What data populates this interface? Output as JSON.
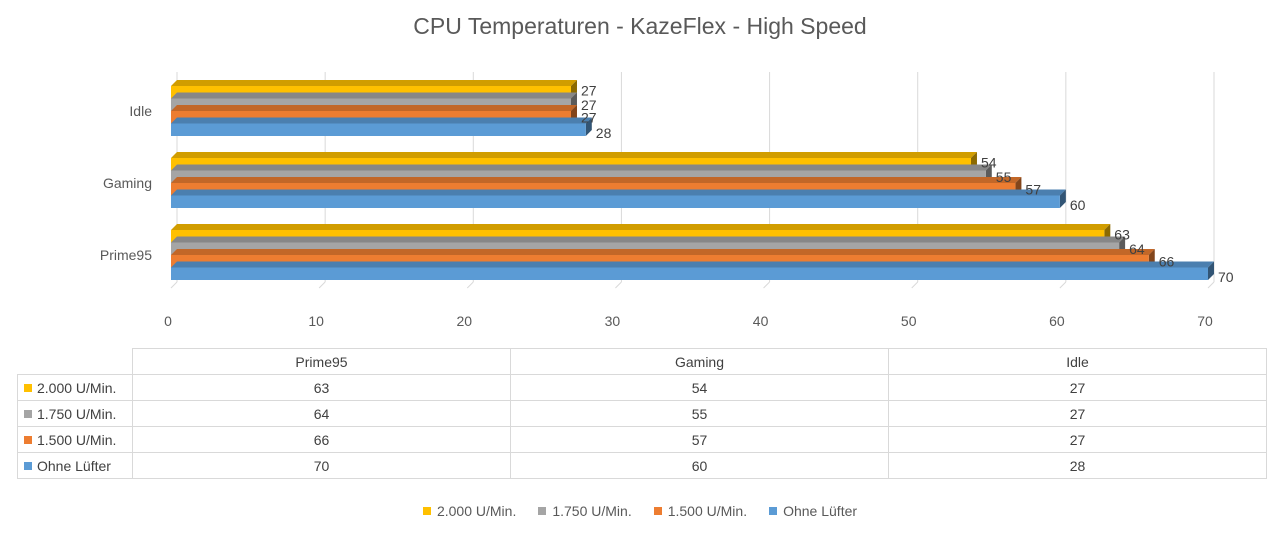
{
  "chart_data": {
    "type": "bar",
    "orientation": "horizontal",
    "title": "CPU Temperaturen - KazeFlex - High Speed",
    "categories": [
      "Prime95",
      "Gaming",
      "Idle"
    ],
    "series": [
      {
        "name": "2.000 U/Min.",
        "color": "#ffc000",
        "values": [
          63,
          54,
          27
        ]
      },
      {
        "name": "1.750 U/Min.",
        "color": "#a5a5a5",
        "values": [
          64,
          55,
          27
        ]
      },
      {
        "name": "1.500 U/Min.",
        "color": "#ed7d31",
        "values": [
          66,
          57,
          27
        ]
      },
      {
        "name": "Ohne Lüfter",
        "color": "#5b9bd5",
        "values": [
          70,
          60,
          28
        ]
      }
    ],
    "xlim": [
      0,
      70
    ],
    "xticks": [
      0,
      10,
      20,
      30,
      40,
      50,
      60,
      70
    ],
    "grid": true,
    "legend": "bottom",
    "data_table": true
  }
}
